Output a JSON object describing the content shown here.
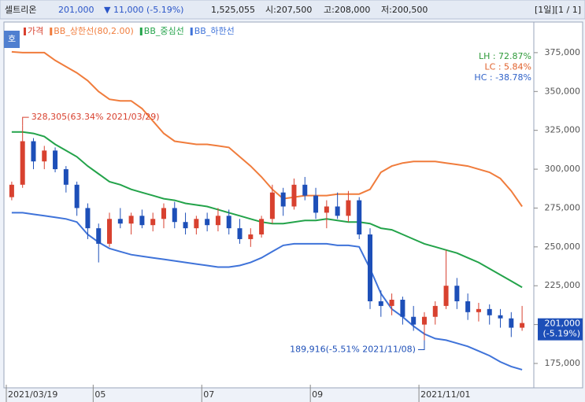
{
  "header": {
    "name": "셀트리온",
    "price": "201,000",
    "change": "▼ 11,000 (-5.19%)",
    "volume": "1,525,055",
    "open": "시:207,500",
    "high": "고:208,000",
    "low": "저:200,500",
    "page": "[1일][1 / 1]",
    "button": "호"
  },
  "chart_data": {
    "type": "candlestick",
    "price_name": "가격",
    "up_color": "#d8412f",
    "down_color": "#1d4fb8",
    "categories": [
      "2021/03/19",
      null,
      null,
      null,
      null,
      null,
      null,
      null,
      "05",
      null,
      null,
      null,
      null,
      null,
      null,
      null,
      null,
      null,
      "07",
      null,
      null,
      null,
      null,
      null,
      null,
      null,
      null,
      null,
      "09",
      null,
      null,
      null,
      null,
      null,
      null,
      null,
      null,
      null,
      "2021/11/01",
      null,
      null,
      null,
      null,
      null,
      null,
      null,
      null,
      null
    ],
    "open": [
      282000,
      290000,
      318000,
      305000,
      312000,
      300000,
      290000,
      275000,
      262000,
      252000,
      268000,
      265000,
      270000,
      264000,
      268000,
      275000,
      266000,
      262000,
      268000,
      264000,
      270000,
      262000,
      255000,
      258000,
      268000,
      285000,
      276000,
      290000,
      283000,
      272000,
      276000,
      270000,
      280000,
      258000,
      215000,
      212000,
      216000,
      205000,
      200000,
      205000,
      212000,
      225000,
      215000,
      208000,
      210000,
      206000,
      204000,
      198000
    ],
    "high": [
      292000,
      328305,
      320000,
      315000,
      314000,
      302000,
      292000,
      278000,
      265000,
      272000,
      275000,
      272000,
      274000,
      272000,
      278000,
      279000,
      272000,
      270000,
      272000,
      275000,
      274000,
      268000,
      262000,
      270000,
      290000,
      288000,
      294000,
      295000,
      288000,
      280000,
      285000,
      286000,
      282000,
      262000,
      222000,
      220000,
      218000,
      212000,
      208000,
      215000,
      248000,
      230000,
      220000,
      214000,
      213000,
      210000,
      208000,
      212000
    ],
    "low": [
      280000,
      288000,
      300000,
      300000,
      298000,
      285000,
      270000,
      255000,
      240000,
      250000,
      262000,
      258000,
      262000,
      260000,
      262000,
      262000,
      258000,
      258000,
      260000,
      260000,
      258000,
      252000,
      250000,
      256000,
      265000,
      270000,
      274000,
      280000,
      268000,
      262000,
      268000,
      266000,
      255000,
      210000,
      205000,
      206000,
      200000,
      196000,
      189916,
      200000,
      210000,
      210000,
      203000,
      202000,
      200000,
      198000,
      192000,
      196000
    ],
    "close": [
      290000,
      318000,
      305000,
      312000,
      300000,
      290000,
      275000,
      262000,
      252000,
      268000,
      265000,
      270000,
      264000,
      268000,
      275000,
      266000,
      262000,
      268000,
      264000,
      270000,
      262000,
      255000,
      258000,
      268000,
      285000,
      276000,
      290000,
      283000,
      272000,
      276000,
      270000,
      280000,
      258000,
      215000,
      212000,
      216000,
      205000,
      200000,
      205000,
      212000,
      225000,
      215000,
      208000,
      210000,
      206000,
      204000,
      198000,
      201000
    ],
    "bands": [
      {
        "name": "BB_상한선(80,2.00)",
        "color": "#f07c3c",
        "values": [
          375500,
          375000,
          375000,
          375000,
          370000,
          366000,
          362000,
          357000,
          350000,
          345000,
          344000,
          344000,
          339000,
          331000,
          323000,
          318000,
          317000,
          316000,
          316000,
          315000,
          314000,
          308000,
          302000,
          295000,
          287000,
          281000,
          282000,
          283000,
          283000,
          283000,
          284000,
          284000,
          284000,
          287000,
          298000,
          302000,
          304000,
          305000,
          305000,
          305000,
          304000,
          303000,
          302000,
          300000,
          298000,
          294000,
          286000,
          276000
        ]
      },
      {
        "name": "BB_중심선",
        "color": "#23a34a",
        "values": [
          324000,
          324000,
          323000,
          321000,
          316000,
          312000,
          308000,
          302000,
          297000,
          292000,
          290000,
          287000,
          285000,
          283000,
          281000,
          280000,
          278000,
          277000,
          276000,
          274000,
          272000,
          270000,
          268000,
          266000,
          265000,
          265000,
          266000,
          267000,
          267000,
          268000,
          267000,
          266000,
          266000,
          265000,
          262000,
          261000,
          258000,
          255000,
          252000,
          250000,
          248000,
          246000,
          243000,
          240000,
          236000,
          232000,
          228000,
          224000
        ]
      },
      {
        "name": "BB_하한선",
        "color": "#3f73d9",
        "values": [
          272000,
          272000,
          271000,
          270000,
          269000,
          268000,
          266000,
          258000,
          253000,
          249000,
          247000,
          245000,
          244000,
          243000,
          242000,
          241000,
          240000,
          239000,
          238000,
          237000,
          237000,
          238000,
          240000,
          243000,
          247000,
          251000,
          252000,
          252000,
          252000,
          252000,
          251000,
          251000,
          250000,
          236000,
          220000,
          210000,
          205000,
          199000,
          194000,
          191000,
          190000,
          188000,
          186000,
          183000,
          180000,
          176000,
          173000,
          171000
        ]
      }
    ],
    "ylim": [
      159300,
      394700
    ],
    "yticks": [
      {
        "value": 175000,
        "label": "175,000"
      },
      {
        "value": 200000,
        "label": "200,000"
      },
      {
        "value": 225000,
        "label": "225,000"
      },
      {
        "value": 250000,
        "label": "250,000"
      },
      {
        "value": 275000,
        "label": "275,000"
      },
      {
        "value": 300000,
        "label": "300,000"
      },
      {
        "value": 325000,
        "label": "325,000"
      },
      {
        "value": 350000,
        "label": "350,000"
      },
      {
        "value": 375000,
        "label": "375,000"
      }
    ],
    "high_annotation": "328,305(63.34% 2021/03/29)",
    "low_annotation": "189,916(-5.51% 2021/11/08)",
    "stats": [
      {
        "text": "LH :  72.87%",
        "color": "#2f9a3a"
      },
      {
        "text": "LC :   5.84%",
        "color": "#e0602a"
      },
      {
        "text": "HC : -38.78%",
        "color": "#2f62c8"
      }
    ],
    "last_label": "201,000",
    "last_change": "(-5.19%)"
  }
}
